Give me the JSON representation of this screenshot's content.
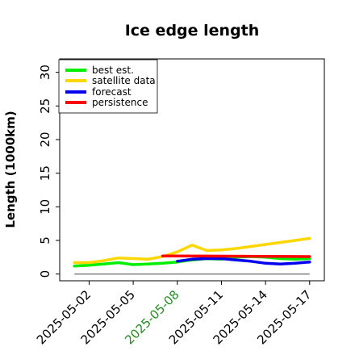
{
  "chart_data": {
    "type": "line",
    "title": "Ice edge length",
    "xlabel": "",
    "ylabel": "Length (1000km)",
    "ylim": [
      -1,
      32
    ],
    "xlim": [
      "2025-04-30",
      "2025-05-18"
    ],
    "yticks": [
      0,
      5,
      10,
      15,
      20,
      25,
      30
    ],
    "xticks": [
      {
        "date": "2025-05-02",
        "label": "2025-05-02",
        "color": "#000000"
      },
      {
        "date": "2025-05-05",
        "label": "2025-05-05",
        "color": "#000000"
      },
      {
        "date": "2025-05-08",
        "label": "2025-05-08",
        "color": "#228b22"
      },
      {
        "date": "2025-05-11",
        "label": "2025-05-11",
        "color": "#000000"
      },
      {
        "date": "2025-05-14",
        "label": "2025-05-14",
        "color": "#000000"
      },
      {
        "date": "2025-05-17",
        "label": "2025-05-17",
        "color": "#000000"
      }
    ],
    "grid": false,
    "legend_position": "top-left",
    "reference_line": {
      "y": 0,
      "color": "#7f7f7f",
      "x": [
        "2025-05-01",
        "2025-05-17"
      ]
    },
    "series": [
      {
        "name": "best est.",
        "color": "#00ee00",
        "x": [
          "2025-05-01",
          "2025-05-02",
          "2025-05-03",
          "2025-05-04",
          "2025-05-05",
          "2025-05-06",
          "2025-05-07",
          "2025-05-08",
          "2025-05-09",
          "2025-05-10",
          "2025-05-11",
          "2025-05-12",
          "2025-05-13",
          "2025-05-14",
          "2025-05-15",
          "2025-05-16",
          "2025-05-17"
        ],
        "y": [
          1.2,
          1.3,
          1.5,
          1.7,
          1.4,
          1.5,
          1.6,
          1.8,
          2.1,
          2.3,
          2.2,
          2.5,
          2.6,
          2.5,
          2.3,
          2.2,
          2.3
        ]
      },
      {
        "name": "satellite data",
        "color": "#ffd700",
        "x": [
          "2025-05-01",
          "2025-05-02",
          "2025-05-03",
          "2025-05-04",
          "2025-05-05",
          "2025-05-06",
          "2025-05-07",
          "2025-05-08",
          "2025-05-09",
          "2025-05-10",
          "2025-05-11",
          "2025-05-12",
          "2025-05-13",
          "2025-05-14",
          "2025-05-15",
          "2025-05-16",
          "2025-05-17"
        ],
        "y": [
          1.7,
          1.7,
          2.0,
          2.4,
          2.3,
          2.2,
          2.6,
          3.3,
          4.3,
          3.5,
          3.6,
          3.8,
          4.1,
          4.4,
          4.7,
          5.0,
          5.3
        ]
      },
      {
        "name": "forecast",
        "color": "#0000ee",
        "x": [
          "2025-05-08",
          "2025-05-09",
          "2025-05-10",
          "2025-05-11",
          "2025-05-12",
          "2025-05-13",
          "2025-05-14",
          "2025-05-15",
          "2025-05-16",
          "2025-05-17"
        ],
        "y": [
          1.9,
          2.2,
          2.3,
          2.3,
          2.1,
          1.9,
          1.6,
          1.5,
          1.6,
          1.8
        ]
      },
      {
        "name": "persistence",
        "color": "#ff0000",
        "x": [
          "2025-05-07",
          "2025-05-17"
        ],
        "y": [
          2.7,
          2.6
        ]
      }
    ]
  }
}
